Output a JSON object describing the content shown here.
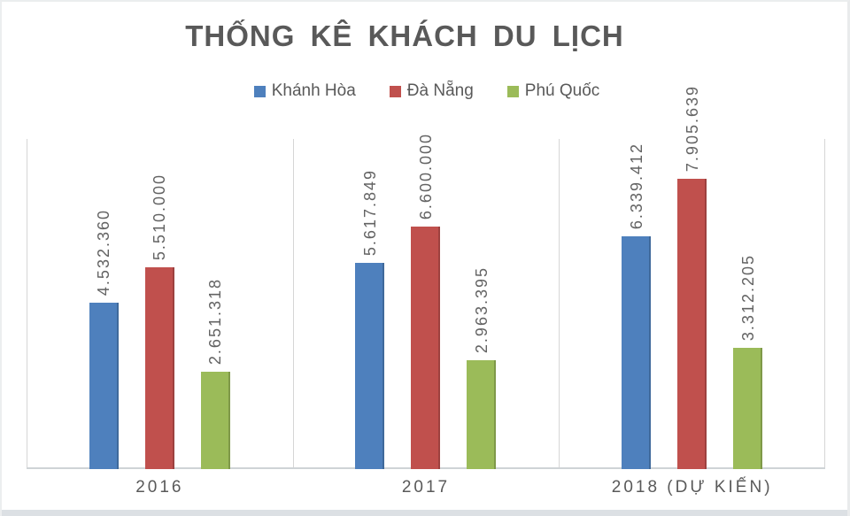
{
  "title": "THỐNG KÊ KHÁCH DU LỊCH",
  "chart_data": {
    "type": "bar",
    "title": "THỐNG KÊ KHÁCH DU LỊCH",
    "categories": [
      "2016",
      "2017",
      "2018 (DỰ KIẾN)"
    ],
    "series": [
      {
        "name": "Khánh Hòa",
        "color": "#4e80bd",
        "values": [
          4532360,
          5617849,
          6339412
        ],
        "labels": [
          "4.532.360",
          "5.617.849",
          "6.339.412"
        ]
      },
      {
        "name": "Đà Nẵng",
        "color": "#c0504d",
        "values": [
          5510000,
          6600000,
          7905639
        ],
        "labels": [
          "5.510.000",
          "6.600.000",
          "7.905.639"
        ]
      },
      {
        "name": "Phú Quốc",
        "color": "#9bbb59",
        "values": [
          2651318,
          2963395,
          3312205
        ],
        "labels": [
          "2.651.318",
          "2.963.395",
          "3.312.205"
        ]
      }
    ],
    "xlabel": "",
    "ylabel": "",
    "ylim": [
      0,
      9000000
    ],
    "grid": false,
    "legend_position": "top",
    "data_labels": "rotated-90-above-bars",
    "line_color": "#d6d6d6"
  }
}
